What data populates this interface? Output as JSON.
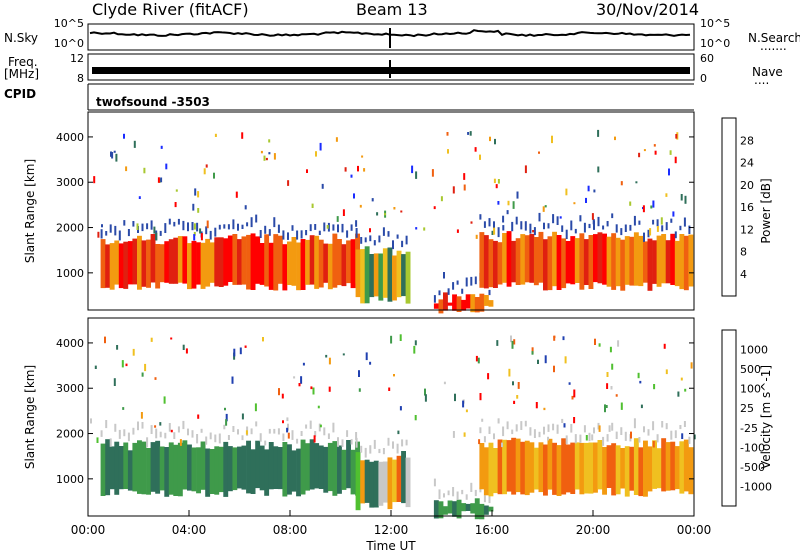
{
  "header": {
    "station": "Clyde River (fitACF)",
    "beam": "Beam 13",
    "date": "30/Nov/2014"
  },
  "aux": {
    "nsky_label": "N.Sky",
    "nsearch_label": "N.Search",
    "nsearch_dots": ".......",
    "freq_label_line1": "Freq.",
    "freq_label_line2": "[MHz]",
    "nave_label": "Nave",
    "nave_dots": "....",
    "cpid_label": "CPID",
    "cpid_value": "twofsound -3503",
    "noise_ticks_left": [
      "10^5",
      "10^0"
    ],
    "noise_ticks_right": [
      "10^5",
      "10^0"
    ],
    "freq_ticks_left": [
      "12",
      "8"
    ],
    "nave_ticks_right": [
      "60",
      "0"
    ]
  },
  "chart_data": [
    {
      "type": "heatmap",
      "title": "",
      "xlabel": "",
      "ylabel": "Slant Range [km]",
      "xlim": [
        0,
        24
      ],
      "ylim": [
        180,
        4550
      ],
      "yticks": [
        "1000",
        "2000",
        "3000",
        "4000"
      ],
      "colorbar": {
        "label": "Power [dB]",
        "ticks": [
          "4",
          "8",
          "12",
          "16",
          "20",
          "24",
          "28"
        ],
        "colors": [
          "#1a2cff",
          "#2a4aa8",
          "#2f6f5a",
          "#3f9a4a",
          "#a8c830",
          "#f0c020",
          "#f39a10",
          "#f06010",
          "#e02010",
          "#ff0000"
        ]
      },
      "bands": [
        {
          "t0": 0.5,
          "t1": 10.6,
          "r0": 700,
          "r1": 1750,
          "value": "high"
        },
        {
          "t0": 10.6,
          "t1": 12.6,
          "r0": 400,
          "r1": 1500,
          "value": "mixed"
        },
        {
          "t0": 13.7,
          "t1": 16.0,
          "r0": 200,
          "r1": 450,
          "value": "high"
        },
        {
          "t0": 15.5,
          "t1": 23.9,
          "r0": 700,
          "r1": 1800,
          "value": "high"
        }
      ]
    },
    {
      "type": "heatmap",
      "title": "",
      "xlabel": "Time UT",
      "ylabel": "Slant Range [km]",
      "xlim": [
        0,
        24
      ],
      "ylim": [
        180,
        4550
      ],
      "xticks": [
        "00:00",
        "04:00",
        "08:00",
        "12:00",
        "16:00",
        "20:00",
        "00:00"
      ],
      "yticks": [
        "1000",
        "2000",
        "3000",
        "4000"
      ],
      "colorbar": {
        "label": "Velocity [m s^-1]",
        "ticks": [
          "1000",
          "500",
          "100",
          "25",
          "-25",
          "-100",
          "-500",
          "-1000"
        ],
        "colors": [
          "#2040b0",
          "#2f6f5a",
          "#3f9a4a",
          "#50c030",
          "#c8c8c8",
          "#f0c020",
          "#f39a10",
          "#f06010",
          "#ff0000"
        ]
      },
      "bands": [
        {
          "t0": 0.5,
          "t1": 10.6,
          "r0": 700,
          "r1": 1750,
          "value": "positive"
        },
        {
          "t0": 10.6,
          "t1": 12.6,
          "r0": 400,
          "r1": 1500,
          "value": "mixed"
        },
        {
          "t0": 13.7,
          "t1": 16.0,
          "r0": 200,
          "r1": 450,
          "value": "positive"
        },
        {
          "t0": 15.5,
          "t1": 23.9,
          "r0": 700,
          "r1": 1800,
          "value": "negative"
        }
      ]
    }
  ]
}
